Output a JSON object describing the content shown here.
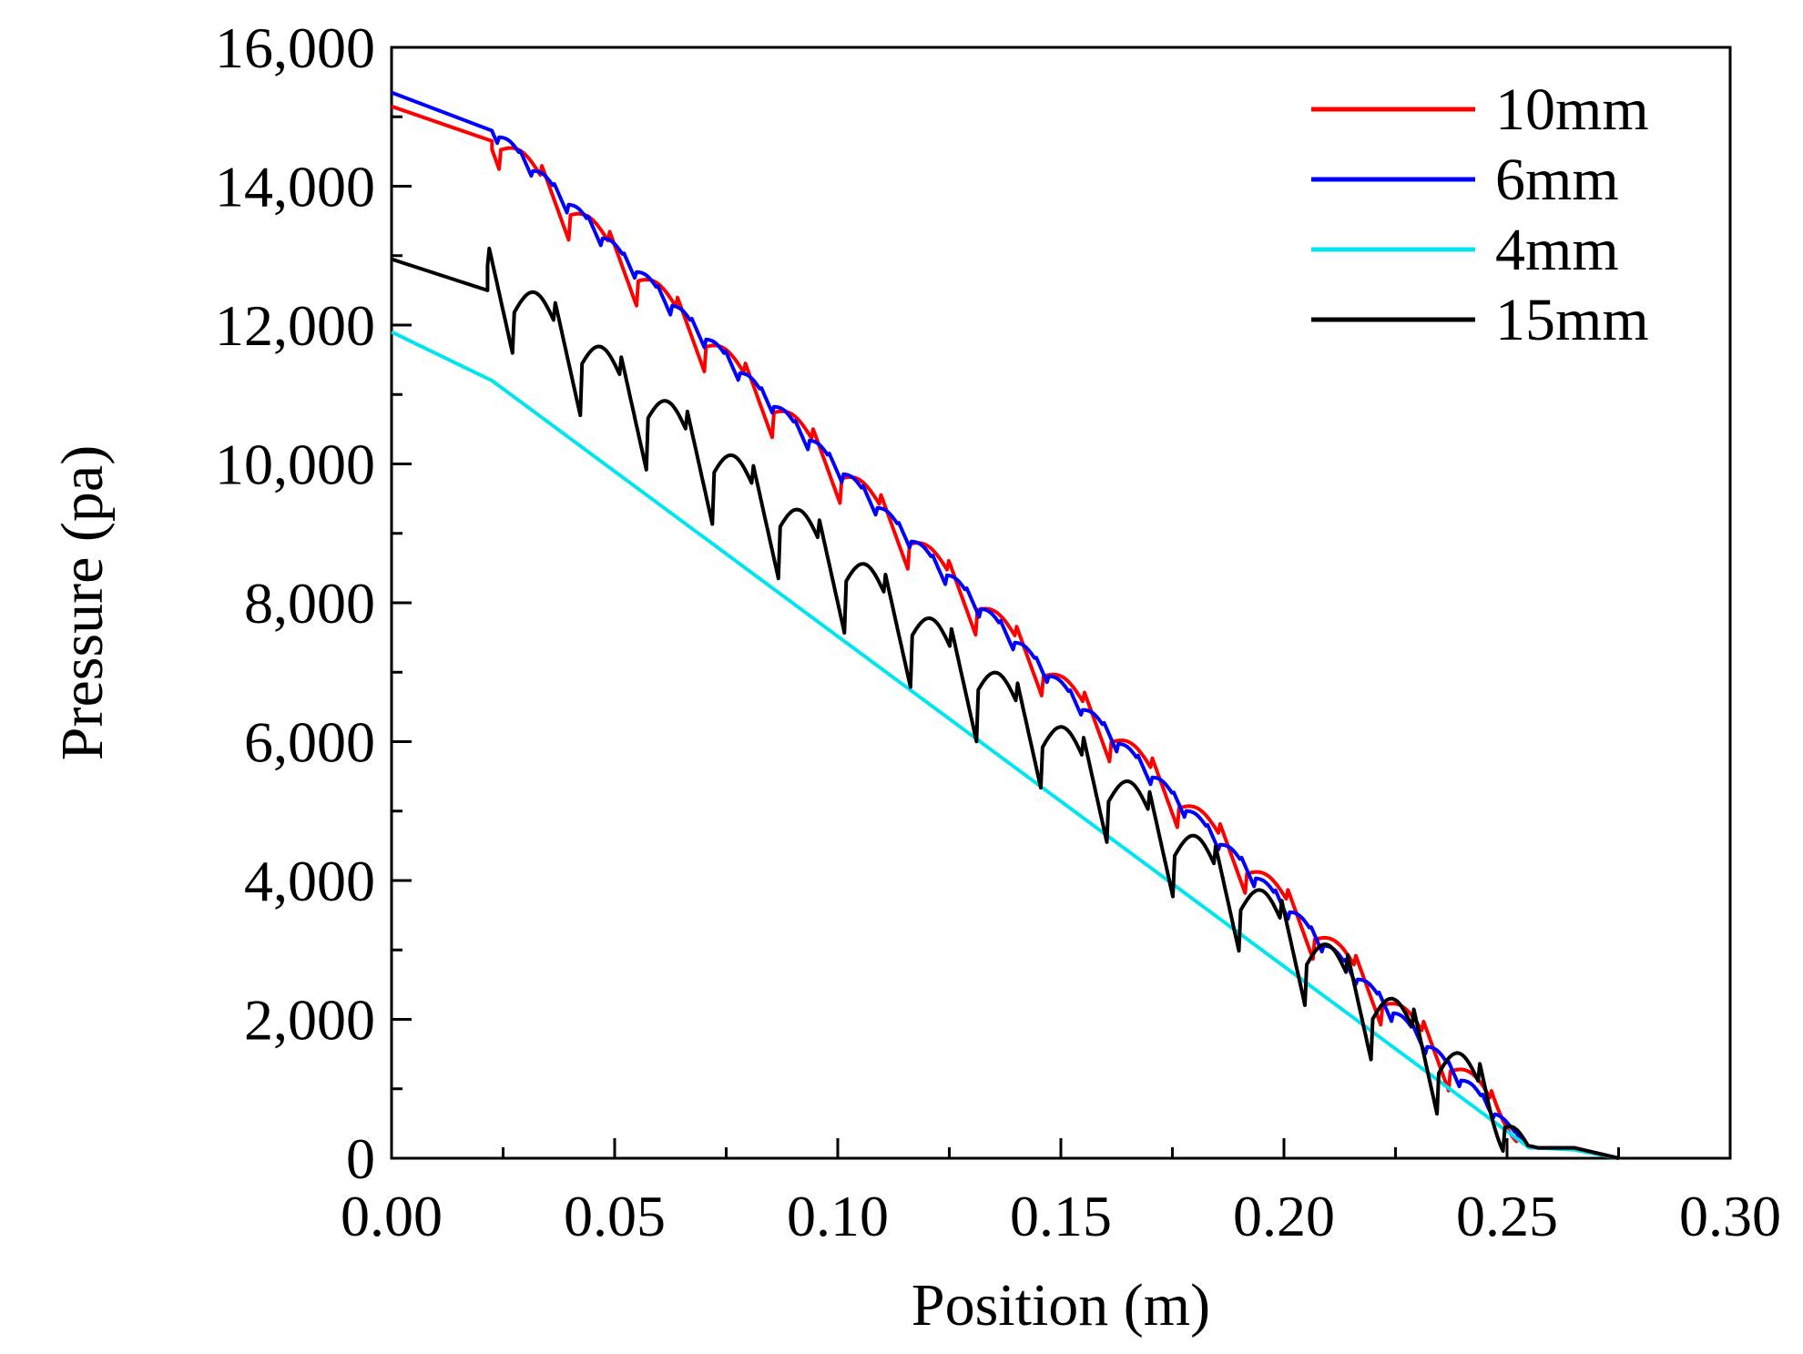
{
  "chart_data": {
    "type": "line",
    "title": "",
    "xlabel": "Position (m)",
    "ylabel": "Pressure (pa)",
    "xlim": [
      0,
      0.3
    ],
    "ylim": [
      0,
      16000
    ],
    "x_ticks": [
      0,
      0.05,
      0.1,
      0.15,
      0.2,
      0.25,
      0.3
    ],
    "x_tick_labels": [
      "0.00",
      "0.05",
      "0.10",
      "0.15",
      "0.20",
      "0.25",
      "0.30"
    ],
    "y_ticks": [
      0,
      2000,
      4000,
      6000,
      8000,
      10000,
      12000,
      14000,
      16000
    ],
    "y_tick_labels": [
      "0",
      "2,000",
      "4,000",
      "6,000",
      "8,000",
      "10,000",
      "12,000",
      "14,000",
      "16,000"
    ],
    "grid": false,
    "legend_position": "top-right",
    "series": [
      {
        "name": "10mm",
        "color": "#ff0000",
        "start_pressure": 15150,
        "inlet_end_x": 0.0225,
        "inlet_end_pressure": 14650,
        "linear_end_x": 0.255,
        "linear_end_pressure": 150,
        "oscillation_amplitude": 350,
        "oscillation_period": 0.0152,
        "oscillation_phase": 0.0245,
        "tail_points": [
          [
            0.257,
            150
          ],
          [
            0.265,
            150
          ],
          [
            0.275,
            0
          ]
        ]
      },
      {
        "name": "6mm",
        "color": "#0000ff",
        "start_pressure": 15350,
        "inlet_end_x": 0.0225,
        "inlet_end_pressure": 14800,
        "linear_end_x": 0.255,
        "linear_end_pressure": 150,
        "oscillation_amplitude": 130,
        "oscillation_period": 0.0077,
        "oscillation_phase": 0.024,
        "tail_points": [
          [
            0.257,
            150
          ],
          [
            0.265,
            150
          ],
          [
            0.275,
            0
          ]
        ]
      },
      {
        "name": "4mm",
        "color": "#00e5ee",
        "start_pressure": 11900,
        "inlet_end_x": 0.0225,
        "inlet_end_pressure": 11200,
        "linear_end_x": 0.255,
        "linear_end_pressure": 150,
        "oscillation_amplitude": 0,
        "oscillation_period": 0.015,
        "oscillation_phase": 0.0,
        "tail_points": [
          [
            0.257,
            150
          ],
          [
            0.265,
            120
          ],
          [
            0.275,
            0
          ]
        ]
      },
      {
        "name": "15mm",
        "color": "#000000",
        "start_pressure": 12950,
        "inlet_end_x": 0.0215,
        "inlet_end_pressure": 12500,
        "linear_end_x": 0.255,
        "linear_end_pressure": 150,
        "oscillation_amplitude": 700,
        "oscillation_period": 0.0148,
        "oscillation_phase": 0.0275,
        "tail_points": [
          [
            0.257,
            150
          ],
          [
            0.265,
            150
          ],
          [
            0.275,
            0
          ]
        ]
      }
    ]
  }
}
